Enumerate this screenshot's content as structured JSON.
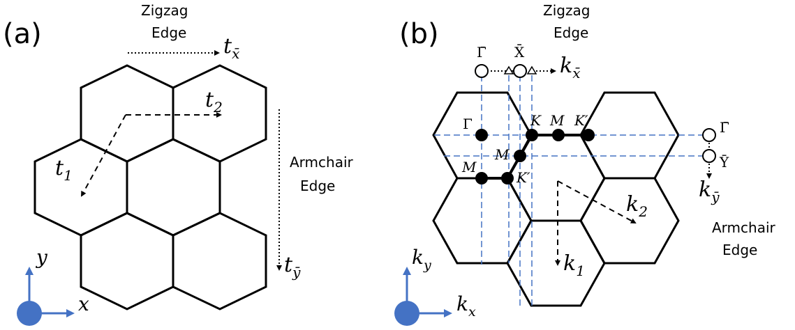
{
  "colors": {
    "ink": "#000000",
    "dashed_blue": "#4472c4",
    "axis_blue": "#4472c4",
    "origin_dot": "#2f5fbf"
  },
  "panel_a": {
    "label": "(a)",
    "zigzag_line1": "Zigzag",
    "zigzag_line2": "Edge",
    "armchair_line1": "Armchair",
    "armchair_line2": "Edge",
    "t_xbar": "t",
    "t_xbar_sub": "x̄",
    "t_ybar": "t",
    "t_ybar_sub": "ȳ",
    "t1": "t",
    "t1_sub": "1",
    "t2": "t",
    "t2_sub": "2",
    "axis_x": "x",
    "axis_y": "y"
  },
  "panel_b": {
    "label": "(b)",
    "zigzag_line1": "Zigzag",
    "zigzag_line2": "Edge",
    "armchair_line1": "Armchair",
    "armchair_line2": "Edge",
    "k_xbar": "k",
    "k_xbar_sub": "x̄",
    "k_ybar": "k",
    "k_ybar_sub": "ȳ",
    "k1": "k",
    "k1_sub": "1",
    "k2": "k",
    "k2_sub": "2",
    "axis_kx": "k",
    "axis_kx_sub": "x",
    "axis_ky": "k",
    "axis_ky_sub": "y",
    "gamma_bar_top": "Γ̄",
    "x_bar_top": "X̄",
    "gamma_bar_right": "Γ̄",
    "y_bar_right": "Ȳ",
    "gamma": "Γ",
    "K": "K",
    "M_top": "M",
    "K_prime_top": "K′",
    "M_mid": "M",
    "M_left": "M",
    "K_prime_low": "K′"
  }
}
